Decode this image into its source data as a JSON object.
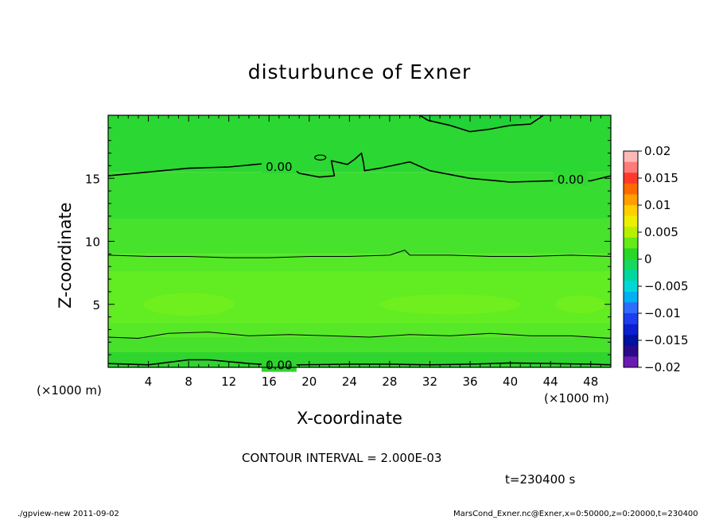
{
  "chart_data": {
    "type": "contour",
    "title": "disturbunce of Exner",
    "xlabel": "X-coordinate",
    "ylabel": "Z-coordinate",
    "x_unit_label": "(×1000 m)",
    "xlim": [
      0,
      50
    ],
    "ylim": [
      0,
      20
    ],
    "x_ticks": [
      4,
      8,
      12,
      16,
      20,
      24,
      28,
      32,
      36,
      40,
      44,
      48
    ],
    "y_ticks": [
      5,
      10,
      15
    ],
    "contour_interval_text": "CONTOUR INTERVAL = 2.000E-03",
    "contour_labels": [
      {
        "text": "0.00",
        "x": 17,
        "z": 15.9
      },
      {
        "text": "0.00",
        "x": 46,
        "z": 14.9
      },
      {
        "text": "0.00",
        "x": 17,
        "z": 0.15
      }
    ],
    "bands": [
      {
        "z_from": 0.0,
        "z_to": 1.2,
        "color": "#2fd42f"
      },
      {
        "z_from": 1.2,
        "z_to": 2.4,
        "color": "#47e12b"
      },
      {
        "z_from": 2.4,
        "z_to": 3.5,
        "color": "#57e827"
      },
      {
        "z_from": 3.5,
        "z_to": 7.6,
        "color": "#62ec22"
      },
      {
        "z_from": 7.6,
        "z_to": 9.0,
        "color": "#55e827"
      },
      {
        "z_from": 9.0,
        "z_to": 11.8,
        "color": "#47e22c"
      },
      {
        "z_from": 11.8,
        "z_to": 15.5,
        "color": "#37dc30"
      },
      {
        "z_from": 15.5,
        "z_to": 20.0,
        "color": "#2bd732"
      }
    ],
    "colorbar": {
      "ticks": [
        "0.02",
        "0.015",
        "0.01",
        "0.005",
        "0",
        "−0.005",
        "−0.01",
        "−0.015",
        "−0.02"
      ],
      "colors": [
        "#ffb8b8",
        "#ff7a7a",
        "#ff3a2a",
        "#ff6a00",
        "#ff9f00",
        "#ffd000",
        "#ecf000",
        "#b8f000",
        "#66ea1a",
        "#28d728",
        "#18d860",
        "#00d8a0",
        "#00d8d8",
        "#00b0f0",
        "#2f6bff",
        "#1e3cf0",
        "#0b1ed0",
        "#0010a0",
        "#2a0a8a",
        "#6a1cb0"
      ]
    },
    "time_label": "t=230400 s"
  },
  "footer": {
    "left": "./gpview-new   2011-09-02",
    "right": "MarsCond_Exner.nc@Exner,x=0:50000,z=0:20000,t=230400"
  }
}
